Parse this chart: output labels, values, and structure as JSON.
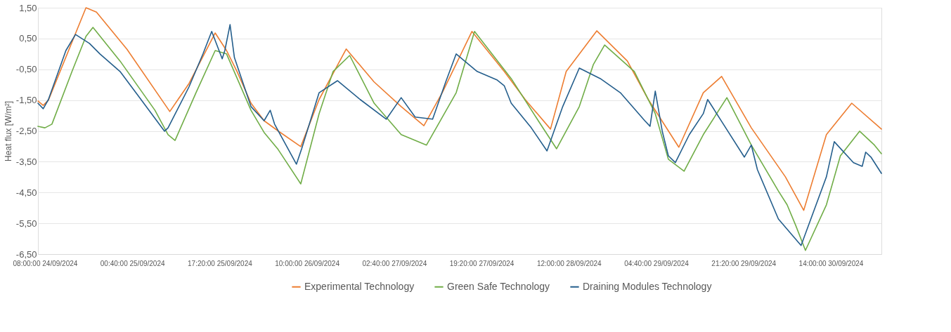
{
  "chart_data": {
    "type": "line",
    "ylabel": "Heat flux [W/m²]",
    "xlim": [
      "2024-09-24T06:40",
      "2024-09-30T23:40"
    ],
    "xticks": [
      {
        "value": "2024-09-24T08:00",
        "label": "08:00:00 24/09/2024"
      },
      {
        "value": "2024-09-25T00:40",
        "label": "00:40:00 25/09/2024"
      },
      {
        "value": "2024-09-25T17:20",
        "label": "17:20:00 25/09/2024"
      },
      {
        "value": "2024-09-26T10:00",
        "label": "10:00:00 26/09/2024"
      },
      {
        "value": "2024-09-27T02:40",
        "label": "02:40:00 27/09/2024"
      },
      {
        "value": "2024-09-27T19:20",
        "label": "19:20:00 27/09/2024"
      },
      {
        "value": "2024-09-28T12:00",
        "label": "12:00:00 28/09/2024"
      },
      {
        "value": "2024-09-29T04:40",
        "label": "04:40:00 29/09/2024"
      },
      {
        "value": "2024-09-29T21:20",
        "label": "21:20:00 29/09/2024"
      },
      {
        "value": "2024-09-30T14:00",
        "label": "14:00:00 30/09/2024"
      }
    ],
    "ylim": [
      -6.5,
      1.5
    ],
    "yticks": [
      {
        "value": 1.5,
        "label": "1,50"
      },
      {
        "value": 0.5,
        "label": "0,50"
      },
      {
        "value": -0.5,
        "label": "-0,50"
      },
      {
        "value": -1.5,
        "label": "-1,50"
      },
      {
        "value": -2.5,
        "label": "-2,50"
      },
      {
        "value": -3.5,
        "label": "-3,50"
      },
      {
        "value": -4.5,
        "label": "-4,50"
      },
      {
        "value": -5.5,
        "label": "-5,50"
      },
      {
        "value": -6.5,
        "label": "-6,50"
      }
    ],
    "grid": "y",
    "legend": "bottom",
    "marker": "none",
    "line_style": "solid",
    "series": [
      {
        "name": "Experimental Technology",
        "color": "#ed7d31",
        "x": [
          "2024-09-24T06:40",
          "2024-09-24T07:40",
          "2024-09-24T08:40",
          "2024-09-24T15:50",
          "2024-09-24T17:50",
          "2024-09-24T23:40",
          "2024-09-25T07:50",
          "2024-09-25T11:30",
          "2024-09-25T16:30",
          "2024-09-25T18:40",
          "2024-09-25T20:40",
          "2024-09-25T23:20",
          "2024-09-26T01:50",
          "2024-09-26T04:30",
          "2024-09-26T08:50",
          "2024-09-26T12:20",
          "2024-09-26T17:30",
          "2024-09-26T22:50",
          "2024-09-27T04:00",
          "2024-09-27T08:20",
          "2024-09-27T11:50",
          "2024-09-27T17:30",
          "2024-09-27T23:40",
          "2024-09-28T03:40",
          "2024-09-28T08:30",
          "2024-09-28T11:30",
          "2024-09-28T17:20",
          "2024-09-28T23:10",
          "2024-09-29T03:10",
          "2024-09-29T09:00",
          "2024-09-29T13:40",
          "2024-09-29T17:10",
          "2024-09-29T22:50",
          "2024-09-30T05:20",
          "2024-09-30T08:50",
          "2024-09-30T13:10",
          "2024-09-30T18:00",
          "2024-09-30T23:40"
        ],
        "values": [
          -1.53,
          -1.67,
          -1.5,
          1.5,
          1.36,
          0.15,
          -1.87,
          -0.96,
          0.68,
          0.11,
          -0.57,
          -1.6,
          -2.17,
          -2.5,
          -3.01,
          -1.48,
          0.16,
          -0.91,
          -1.71,
          -2.33,
          -1.26,
          0.73,
          -0.57,
          -1.48,
          -2.44,
          -0.57,
          0.75,
          -0.23,
          -1.48,
          -3.03,
          -1.26,
          -0.73,
          -2.4,
          -3.99,
          -5.08,
          -2.62,
          -1.6,
          -2.44
        ]
      },
      {
        "name": "Green Safe Technology",
        "color": "#70ad47",
        "x": [
          "2024-09-24T06:40",
          "2024-09-24T08:00",
          "2024-09-24T09:20",
          "2024-09-24T13:10",
          "2024-09-24T15:50",
          "2024-09-24T17:10",
          "2024-09-24T22:20",
          "2024-09-25T05:00",
          "2024-09-25T07:30",
          "2024-09-25T08:50",
          "2024-09-25T12:50",
          "2024-09-25T16:30",
          "2024-09-25T18:40",
          "2024-09-25T23:20",
          "2024-09-26T01:50",
          "2024-09-26T04:30",
          "2024-09-26T08:50",
          "2024-09-26T12:20",
          "2024-09-26T15:00",
          "2024-09-26T18:10",
          "2024-09-26T22:50",
          "2024-09-27T04:00",
          "2024-09-27T08:50",
          "2024-09-27T14:30",
          "2024-09-27T18:00",
          "2024-09-28T01:00",
          "2024-09-28T06:10",
          "2024-09-28T09:40",
          "2024-09-28T14:00",
          "2024-09-28T16:40",
          "2024-09-28T18:50",
          "2024-09-29T00:30",
          "2024-09-29T04:30",
          "2024-09-29T07:00",
          "2024-09-29T10:00",
          "2024-09-29T13:40",
          "2024-09-29T18:10",
          "2024-09-29T22:50",
          "2024-09-30T04:00",
          "2024-09-30T05:40",
          "2024-09-30T07:20",
          "2024-09-30T09:10",
          "2024-09-30T13:10",
          "2024-09-30T15:50",
          "2024-09-30T19:30",
          "2024-09-30T22:20",
          "2024-09-30T23:40"
        ],
        "values": [
          -2.35,
          -2.4,
          -2.28,
          -0.57,
          0.57,
          0.86,
          -0.23,
          -1.83,
          -2.62,
          -2.81,
          -1.26,
          0.11,
          0.0,
          -1.83,
          -2.55,
          -3.1,
          -4.22,
          -1.94,
          -0.57,
          -0.05,
          -1.6,
          -2.62,
          -2.96,
          -1.26,
          0.73,
          -0.8,
          -2.17,
          -3.08,
          -1.71,
          -0.35,
          0.29,
          -0.57,
          -1.94,
          -3.42,
          -3.81,
          -2.62,
          -1.42,
          -2.96,
          -4.45,
          -4.9,
          -5.58,
          -6.38,
          -4.9,
          -3.31,
          -2.51,
          -2.96,
          -3.24
        ]
      },
      {
        "name": "Draining Modules Technology",
        "color": "#245e8c",
        "x": [
          "2024-09-24T06:40",
          "2024-09-24T07:40",
          "2024-09-24T08:40",
          "2024-09-24T12:00",
          "2024-09-24T13:50",
          "2024-09-24T16:30",
          "2024-09-24T18:30",
          "2024-09-24T22:20",
          "2024-09-25T02:20",
          "2024-09-25T06:50",
          "2024-09-25T07:30",
          "2024-09-25T11:30",
          "2024-09-25T14:10",
          "2024-09-25T15:50",
          "2024-09-25T17:50",
          "2024-09-25T18:20",
          "2024-09-25T19:20",
          "2024-09-25T20:10",
          "2024-09-25T23:20",
          "2024-09-26T01:50",
          "2024-09-26T03:00",
          "2024-09-26T03:50",
          "2024-09-26T08:00",
          "2024-09-26T09:00",
          "2024-09-26T12:20",
          "2024-09-26T15:50",
          "2024-09-26T20:10",
          "2024-09-27T01:10",
          "2024-09-27T04:00",
          "2024-09-27T06:40",
          "2024-09-27T10:00",
          "2024-09-27T12:30",
          "2024-09-27T14:30",
          "2024-09-27T18:30",
          "2024-09-27T22:20",
          "2024-09-27T23:40",
          "2024-09-28T01:00",
          "2024-09-28T04:50",
          "2024-09-28T07:50",
          "2024-09-28T10:50",
          "2024-09-28T14:00",
          "2024-09-28T18:00",
          "2024-09-28T21:50",
          "2024-09-29T02:30",
          "2024-09-29T03:30",
          "2024-09-29T04:30",
          "2024-09-29T05:50",
          "2024-09-29T07:00",
          "2024-09-29T08:20",
          "2024-09-29T11:00",
          "2024-09-29T13:40",
          "2024-09-29T14:30",
          "2024-09-29T17:30",
          "2024-09-29T21:30",
          "2024-09-29T22:50",
          "2024-09-30T00:00",
          "2024-09-30T04:00",
          "2024-09-30T08:20",
          "2024-09-30T13:10",
          "2024-09-30T14:40",
          "2024-09-30T18:20",
          "2024-09-30T20:00",
          "2024-09-30T20:40",
          "2024-09-30T21:40",
          "2024-09-30T23:40"
        ],
        "values": [
          -1.6,
          -1.78,
          -1.48,
          0.11,
          0.63,
          0.34,
          0.0,
          -0.57,
          -1.48,
          -2.51,
          -2.4,
          -1.07,
          0.0,
          0.73,
          -0.16,
          0.11,
          0.95,
          -0.12,
          -1.71,
          -2.17,
          -1.83,
          -2.28,
          -3.58,
          -3.08,
          -1.26,
          -0.87,
          -1.48,
          -2.12,
          -1.42,
          -2.05,
          -2.12,
          -0.91,
          0.0,
          -0.57,
          -0.85,
          -1.03,
          -1.6,
          -2.4,
          -3.15,
          -1.71,
          -0.46,
          -0.8,
          -1.26,
          -2.17,
          -2.35,
          -1.21,
          -2.51,
          -3.31,
          -3.53,
          -2.62,
          -1.94,
          -1.48,
          -2.28,
          -3.35,
          -2.96,
          -3.76,
          -5.36,
          -6.22,
          -3.99,
          -2.85,
          -3.53,
          -3.65,
          -3.19,
          -3.35,
          -3.88
        ]
      }
    ]
  }
}
